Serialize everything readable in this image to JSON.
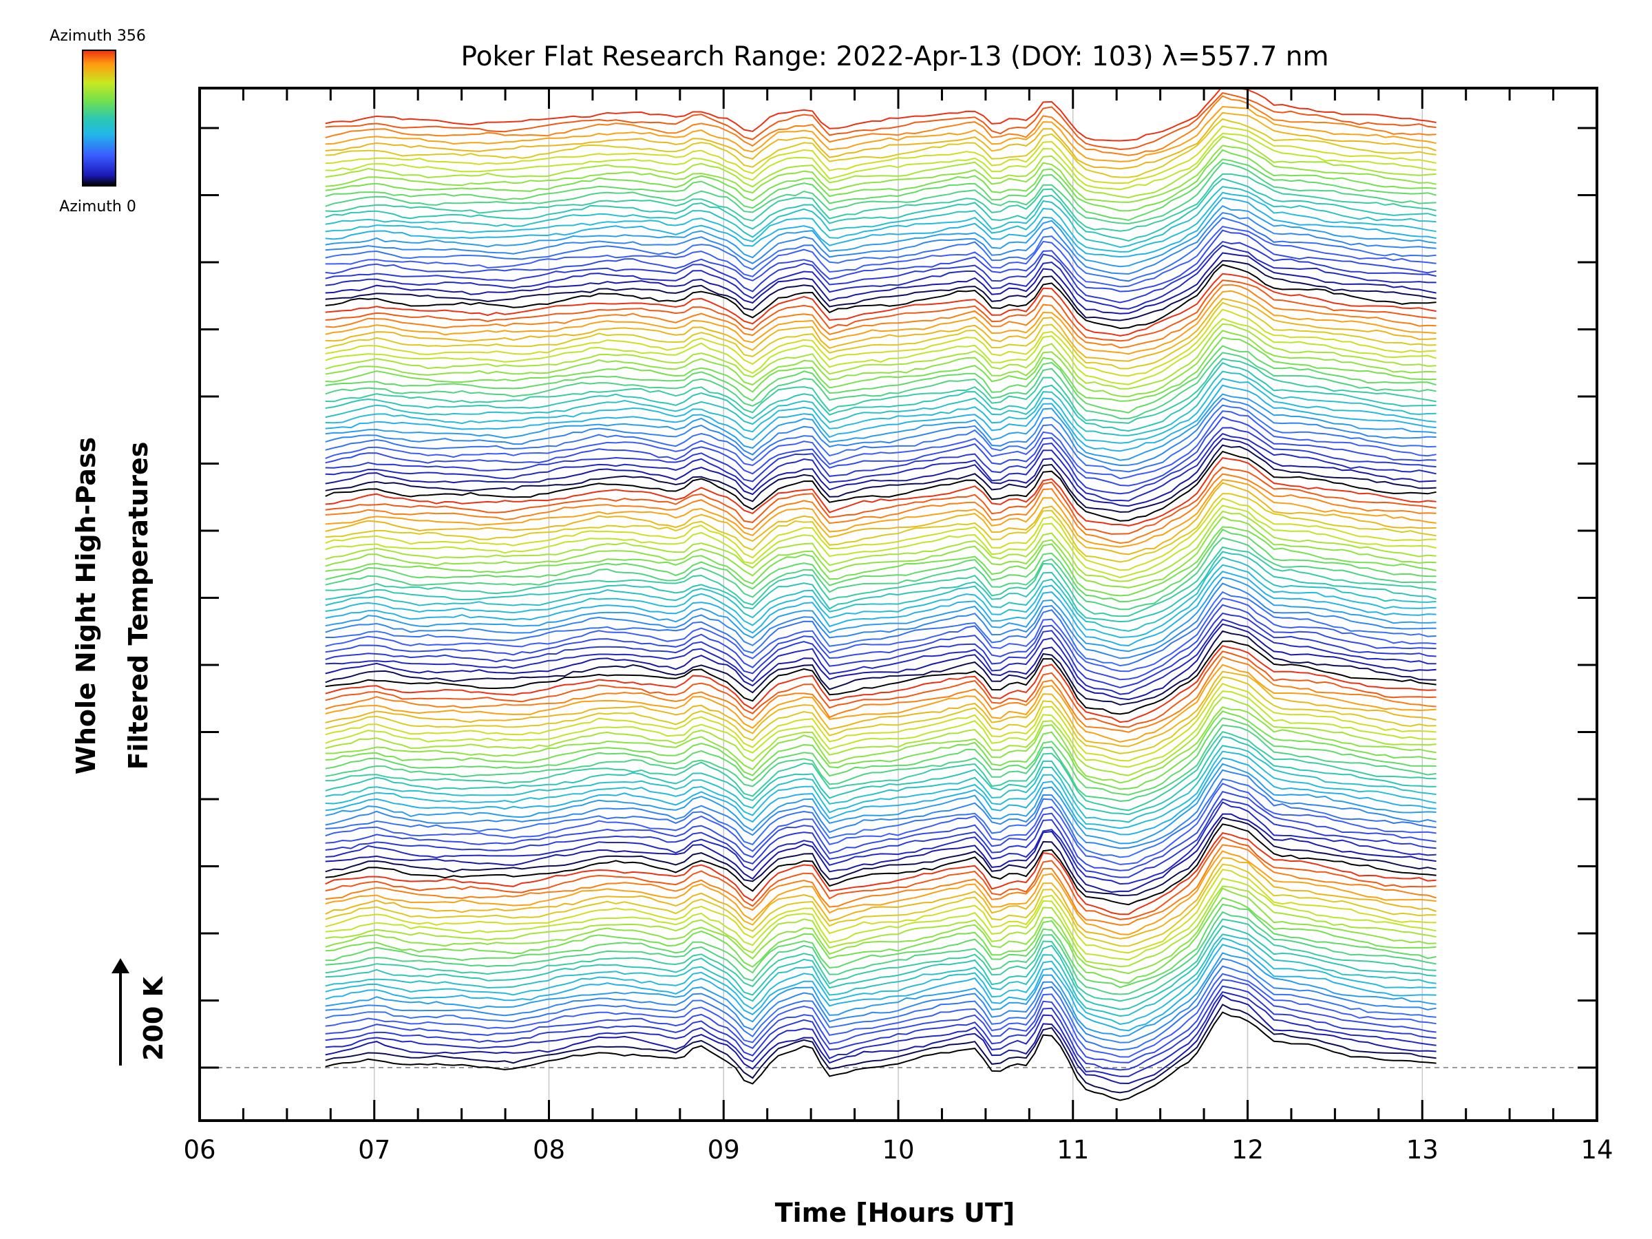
{
  "chart_data": {
    "type": "line",
    "title": "Poker Flat Research Range: 2022-Apr-13 (DOY: 103) λ=557.7 nm",
    "xlabel": "Time [Hours UT]",
    "ylabel_line1": "Whole Night High-Pass",
    "ylabel_line2": "Filtered Temperatures",
    "scale_label": "200 K",
    "xlim": [
      6,
      14
    ],
    "x_ticks": [
      "06",
      "07",
      "08",
      "09",
      "10",
      "11",
      "12",
      "13",
      "14"
    ],
    "x_range_data": [
      6.72,
      13.08
    ],
    "grid": "vertical",
    "legend": {
      "type": "colorbar",
      "placement": "top-left",
      "label_top": "Azimuth 356",
      "label_bottom": "Azimuth 0",
      "colormap": "rainbow"
    },
    "series_count": 140,
    "profile_times": [
      6.72,
      6.85,
      7.0,
      7.2,
      7.5,
      7.8,
      8.0,
      8.3,
      8.5,
      8.75,
      8.85,
      8.95,
      9.05,
      9.15,
      9.3,
      9.5,
      9.6,
      9.8,
      10.0,
      10.2,
      10.45,
      10.55,
      10.65,
      10.75,
      10.85,
      10.95,
      11.05,
      11.3,
      11.5,
      11.7,
      11.85,
      12.0,
      12.15,
      12.35,
      12.6,
      12.85,
      13.08
    ],
    "profile_values_K": [
      0,
      8,
      20,
      6,
      3,
      0,
      10,
      30,
      28,
      12,
      42,
      25,
      8,
      -35,
      22,
      40,
      -18,
      0,
      8,
      22,
      40,
      -12,
      10,
      2,
      75,
      28,
      -40,
      -60,
      -32,
      20,
      110,
      95,
      50,
      42,
      25,
      12,
      5
    ]
  },
  "colors": {
    "axis": "#000000",
    "grid": "#c8c8c8",
    "zero_line": "#999999",
    "colormap_stops": [
      "#000000",
      "#1a1ab8",
      "#3a5aff",
      "#20b8e8",
      "#2ec8b0",
      "#6ee050",
      "#c8e820",
      "#ff9a10",
      "#ee3010"
    ]
  }
}
